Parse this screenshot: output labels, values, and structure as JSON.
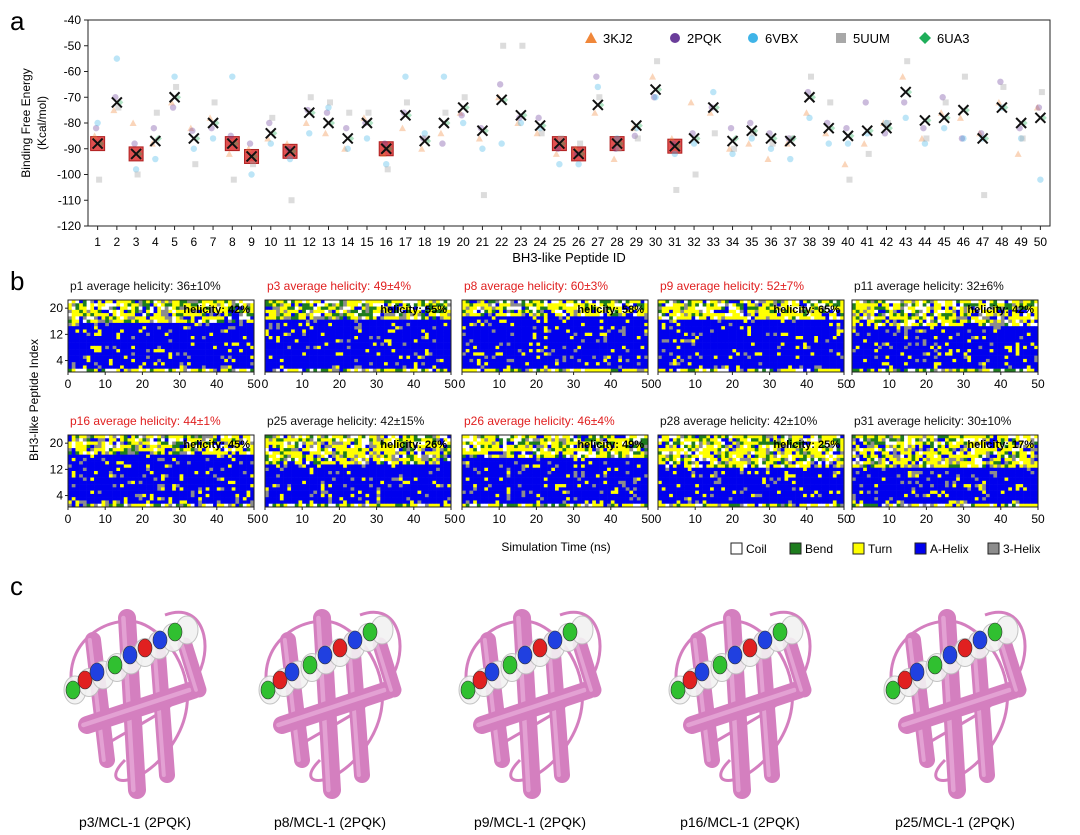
{
  "panel_labels": {
    "a": "a",
    "b": "b",
    "c": "c"
  },
  "chart_data": [
    {
      "type": "scatter",
      "ylabel_line1": "Binding Free Energy",
      "ylabel_line2": "(Kcal/mol)",
      "xlabel": "BH3-like Peptide ID",
      "ylim": [
        -120,
        -40
      ],
      "yticks": [
        -40,
        -50,
        -60,
        -70,
        -80,
        -90,
        -100,
        -110,
        -120
      ],
      "x": [
        1,
        2,
        3,
        4,
        5,
        6,
        7,
        8,
        9,
        10,
        11,
        12,
        13,
        14,
        15,
        16,
        17,
        18,
        19,
        20,
        21,
        22,
        23,
        24,
        25,
        26,
        27,
        28,
        29,
        30,
        31,
        32,
        33,
        34,
        35,
        36,
        37,
        38,
        39,
        40,
        41,
        42,
        43,
        44,
        45,
        46,
        47,
        48,
        49,
        50
      ],
      "legend": [
        {
          "label": "3KJ2",
          "color": "#f0873a",
          "marker": "triangle"
        },
        {
          "label": "2PQK",
          "color": "#6a3d9a",
          "marker": "circle"
        },
        {
          "label": "6VBX",
          "color": "#3fb4e8",
          "marker": "circle"
        },
        {
          "label": "5UUM",
          "color": "#a8a8a8",
          "marker": "square"
        },
        {
          "label": "6UA3",
          "color": "#1fae5a",
          "marker": "diamond"
        }
      ],
      "series": [
        {
          "name": "3KJ2",
          "values": [
            -85,
            -75,
            -80,
            -88,
            -72,
            -82,
            -78,
            -92,
            -90,
            -86,
            -88,
            -80,
            -84,
            -90,
            -78,
            -92,
            -82,
            -90,
            -84,
            -76,
            -86,
            -70,
            -80,
            -84,
            -92,
            -90,
            -76,
            -94,
            -82,
            -62,
            -86,
            -72,
            -76,
            -90,
            -88,
            -94,
            -88,
            -76,
            -84,
            -96,
            -88,
            -80,
            -62,
            -86,
            -76,
            -78,
            -84,
            -72,
            -92,
            -74
          ]
        },
        {
          "name": "2PQK",
          "values": [
            -82,
            -70,
            -88,
            -82,
            -74,
            -83,
            -82,
            -85,
            -88,
            -80,
            -90,
            -75,
            -76,
            -82,
            -80,
            -88,
            -76,
            -86,
            -88,
            -77,
            -82,
            -65,
            -78,
            -78,
            -90,
            -92,
            -62,
            -90,
            -85,
            -70,
            -88,
            -84,
            -74,
            -82,
            -80,
            -84,
            -86,
            -68,
            -80,
            -82,
            -72,
            -84,
            -72,
            -82,
            -70,
            -86,
            -84,
            -64,
            -82,
            -74
          ]
        },
        {
          "name": "6VBX",
          "values": [
            -80,
            -55,
            -98,
            -94,
            -62,
            -90,
            -86,
            -62,
            -100,
            -88,
            -94,
            -84,
            -74,
            -90,
            -86,
            -96,
            -62,
            -84,
            -62,
            -80,
            -90,
            -88,
            -80,
            -82,
            -96,
            -96,
            -66,
            -86,
            -82,
            -70,
            -92,
            -88,
            -68,
            -92,
            -86,
            -90,
            -94,
            -78,
            -88,
            -88,
            -84,
            -80,
            -78,
            -88,
            -82,
            -86,
            -86,
            -74,
            -86,
            -102
          ]
        },
        {
          "name": "5UUM",
          "values": [
            -102,
            -74,
            -100,
            -76,
            -66,
            -96,
            -72,
            -102,
            -96,
            -78,
            -110,
            -70,
            -72,
            -76,
            -76,
            -98,
            -72,
            -86,
            -76,
            -70,
            -108,
            -50,
            -50,
            -84,
            -86,
            -88,
            -70,
            -90,
            -86,
            -56,
            -106,
            -100,
            -84,
            -90,
            -84,
            -88,
            -86,
            -62,
            -72,
            -102,
            -92,
            -80,
            -56,
            -86,
            -72,
            -62,
            -108,
            -66,
            -86,
            -68
          ]
        },
        {
          "name": "6UA3",
          "values": [
            -88,
            -72,
            -92,
            -86,
            -70,
            -86,
            -80,
            -88,
            -93,
            -84,
            -91,
            -76,
            -80,
            -86,
            -80,
            -90,
            -77,
            -87,
            -80,
            -74,
            -83,
            -71,
            -77,
            -81,
            -88,
            -92,
            -73,
            -88,
            -81,
            -67,
            -89,
            -86,
            -74,
            -86,
            -83,
            -86,
            -86,
            -70,
            -82,
            -85,
            -83,
            -82,
            -68,
            -79,
            -78,
            -75,
            -86,
            -74,
            -80,
            -78
          ]
        }
      ],
      "average": [
        -88,
        -72,
        -92,
        -87,
        -70,
        -86,
        -80,
        -88,
        -93,
        -84,
        -91,
        -76,
        -80,
        -86,
        -80,
        -90,
        -77,
        -87,
        -80,
        -74,
        -83,
        -71,
        -77,
        -81,
        -88,
        -92,
        -73,
        -88,
        -81,
        -67,
        -89,
        -86,
        -74,
        -87,
        -83,
        -86,
        -87,
        -70,
        -82,
        -85,
        -83,
        -82,
        -68,
        -79,
        -78,
        -75,
        -86,
        -74,
        -80,
        -78
      ],
      "highlighted_ids": [
        1,
        3,
        8,
        9,
        11,
        16,
        25,
        26,
        28,
        31
      ]
    },
    {
      "type": "heatmap",
      "ylabel": "BH3-like Peptide Index",
      "xlabel": "Simulation Time (ns)",
      "xticks": [
        0,
        10,
        20,
        30,
        40,
        50
      ],
      "yticks": [
        4,
        12,
        20
      ],
      "legend": [
        {
          "label": "Coil",
          "color": "#ffffff"
        },
        {
          "label": "Bend",
          "color": "#1e7d1e"
        },
        {
          "label": "Turn",
          "color": "#ffff00"
        },
        {
          "label": "A-Helix",
          "color": "#0000ee"
        },
        {
          "label": "3-Helix",
          "color": "#8c8c8c"
        }
      ],
      "panels": [
        {
          "title": "p1 average helicity: 36±10%",
          "highlight": false,
          "inner_label": "helicity: 42%"
        },
        {
          "title": "p3 average helicity: 49±4%",
          "highlight": true,
          "inner_label": "helicity: 55%"
        },
        {
          "title": "p8 average helicity: 60±3%",
          "highlight": true,
          "inner_label": "helicity: 58%"
        },
        {
          "title": "p9 average helicity: 52±7%",
          "highlight": true,
          "inner_label": "helicity: 65%"
        },
        {
          "title": "p11 average helicity: 32±6%",
          "highlight": false,
          "inner_label": "helicity: 42%"
        },
        {
          "title": "p16 average helicity: 44±1%",
          "highlight": true,
          "inner_label": "helicity: 45%"
        },
        {
          "title": "p25 average helicity: 42±15%",
          "highlight": false,
          "inner_label": "helicity: 26%"
        },
        {
          "title": "p26 average  helicity: 46±4%",
          "highlight": true,
          "inner_label": "helicity: 49%"
        },
        {
          "title": "p28 average helicity: 42±10%",
          "highlight": false,
          "inner_label": "helicity: 25%"
        },
        {
          "title": "p31 average helicity: 30±10%",
          "highlight": false,
          "inner_label": "helicity: 17%"
        }
      ]
    }
  ],
  "structures": {
    "captions": [
      "p3/MCL-1 (2PQK)",
      "p8/MCL-1 (2PQK)",
      "p9/MCL-1 (2PQK)",
      "p16/MCL-1 (2PQK)",
      "p25/MCL-1 (2PQK)"
    ],
    "protein_color": "#d47fbf",
    "residue_colors": [
      "#e02020",
      "#2040e0",
      "#30c030",
      "#ffffff"
    ]
  }
}
